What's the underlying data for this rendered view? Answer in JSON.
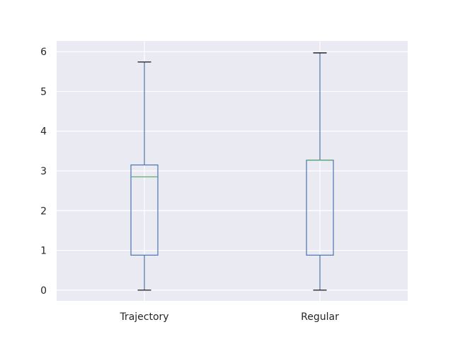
{
  "chart_data": {
    "type": "boxplot",
    "title": "",
    "xlabel": "",
    "ylabel": "",
    "ylim": [
      -0.27,
      6.27
    ],
    "yticks": [
      0,
      1,
      2,
      3,
      4,
      5,
      6
    ],
    "categories": [
      "Trajectory",
      "Regular"
    ],
    "boxes": [
      {
        "category": "Trajectory",
        "whisker_low": 0.0,
        "q1": 0.88,
        "median": 2.85,
        "q3": 3.15,
        "whisker_high": 5.74
      },
      {
        "category": "Regular",
        "whisker_low": 0.0,
        "q1": 0.88,
        "median": 3.27,
        "q3": 3.27,
        "whisker_high": 5.97
      }
    ],
    "grid": true,
    "legend": "none",
    "colors": {
      "plot_background": "#EAEAF2",
      "grid": "#FFFFFF",
      "box": "#4C72B0",
      "median": "#55A868",
      "cap": "#000000",
      "text": "#262626"
    }
  }
}
